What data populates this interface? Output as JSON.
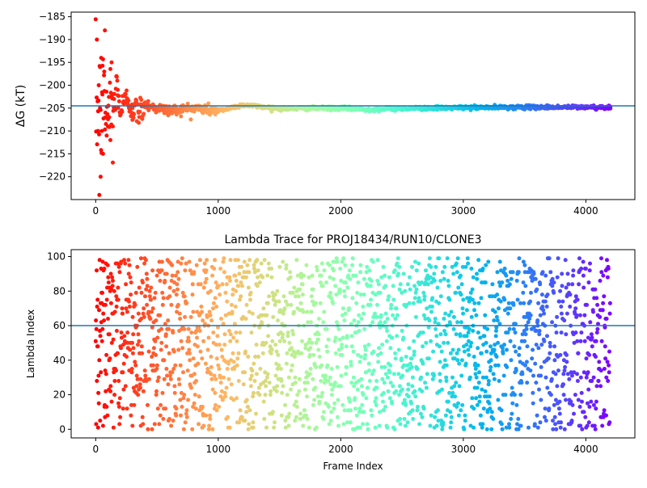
{
  "chart_data": [
    {
      "type": "scatter",
      "title": "",
      "xlabel": "",
      "ylabel": "ΔG (kT)",
      "xlim": [
        -200,
        4400
      ],
      "ylim": [
        -225,
        -184
      ],
      "xticks": [
        0,
        1000,
        2000,
        3000,
        4000
      ],
      "yticks": [
        -220,
        -215,
        -210,
        -205,
        -200,
        -195,
        -190,
        -185
      ],
      "hline": -204.5,
      "hline_color": "#1f77b4",
      "colormap": "rainbow (red at frame 0 to violet at frame 4200)",
      "frame_range": [
        0,
        4200
      ],
      "point_size": 2.5,
      "series": [
        {
          "values_sampled": [
            [
              10,
              -190
            ],
            [
              20,
              -210
            ],
            [
              25,
              -200
            ],
            [
              30,
              -224
            ],
            [
              35,
              -205
            ],
            [
              40,
              -220
            ],
            [
              45,
              -194
            ],
            [
              50,
              -210
            ],
            [
              55,
              -202
            ],
            [
              60,
              -215
            ],
            [
              70,
              -197
            ],
            [
              75,
              -188
            ],
            [
              80,
              -206
            ],
            [
              90,
              -211
            ],
            [
              100,
              -209
            ],
            [
              110,
              -207
            ],
            [
              120,
              -212
            ],
            [
              130,
              -195
            ],
            [
              140,
              -209
            ],
            [
              150,
              -203
            ],
            [
              160,
              -205
            ],
            [
              170,
              -198
            ],
            [
              180,
              -201
            ],
            [
              200,
              -206
            ],
            [
              230,
              -204
            ],
            [
              260,
              -203
            ],
            [
              300,
              -205
            ],
            [
              350,
              -206
            ],
            [
              400,
              -204
            ],
            [
              500,
              -205
            ],
            [
              600,
              -205.5
            ],
            [
              800,
              -205
            ],
            [
              1000,
              -205.6
            ],
            [
              1200,
              -204.3
            ],
            [
              1500,
              -205.1
            ],
            [
              2000,
              -205.0
            ],
            [
              2200,
              -205.3
            ],
            [
              2500,
              -205.1
            ],
            [
              3000,
              -204.9
            ],
            [
              3500,
              -204.8
            ],
            [
              4000,
              -204.8
            ],
            [
              4200,
              -204.8
            ]
          ]
        }
      ]
    },
    {
      "type": "scatter",
      "title": "Lambda Trace for PROJ18434/RUN10/CLONE3",
      "xlabel": "Frame Index",
      "ylabel": "Lambda Index",
      "xlim": [
        -200,
        4400
      ],
      "ylim": [
        -5,
        104
      ],
      "xticks": [
        0,
        1000,
        2000,
        3000,
        4000
      ],
      "yticks": [
        0,
        20,
        40,
        60,
        80,
        100
      ],
      "hline": 60,
      "hline_color": "#1f77b4",
      "colormap": "rainbow (red at frame 0 to violet at frame 4200)",
      "frame_range": [
        0,
        4200
      ],
      "point_size": 2.5,
      "n_points": 4200,
      "distribution": "lambda index values spread uniformly between 0 and 99 across all frames"
    }
  ]
}
